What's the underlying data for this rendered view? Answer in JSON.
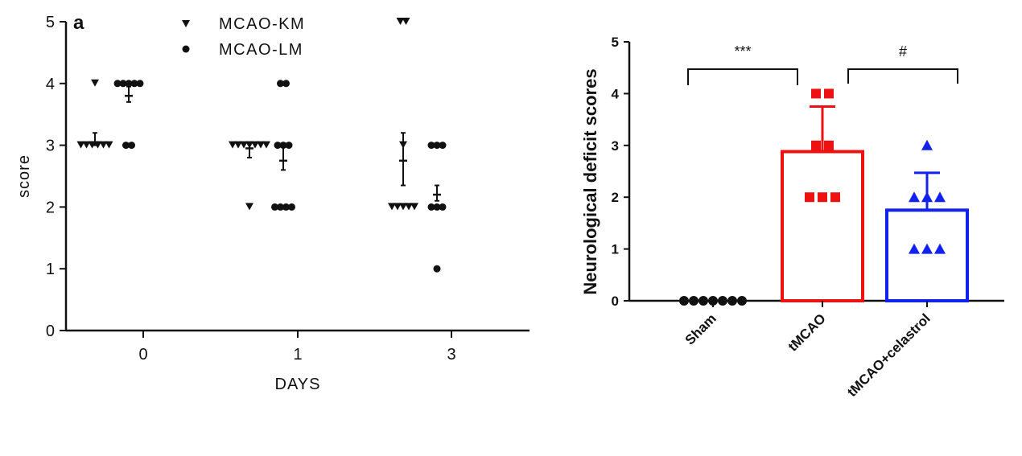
{
  "chart_data": [
    {
      "type": "scatter",
      "panel_label": "a",
      "xlabel": "DAYS",
      "ylabel": "score",
      "categories": [
        "0",
        "1",
        "3"
      ],
      "ylim": [
        0,
        5
      ],
      "yticks": [
        "0",
        "1",
        "2",
        "3",
        "4",
        "5"
      ],
      "legend_position": "top-center",
      "series": [
        {
          "name": "MCAO-KM",
          "marker": "triangle-down",
          "color": "#111111",
          "groups": [
            {
              "category": "0",
              "points": [
                4,
                3,
                3,
                3,
                3,
                3,
                3
              ],
              "mean": 3.05,
              "err": [
                3.0,
                3.2
              ]
            },
            {
              "category": "1",
              "points": [
                3,
                3,
                3,
                3,
                3,
                3,
                3,
                2
              ],
              "mean": 2.95,
              "err": [
                2.8,
                3.05
              ]
            },
            {
              "category": "3",
              "points": [
                5,
                5,
                3,
                2,
                2,
                2,
                2,
                2
              ],
              "mean": 2.75,
              "err": [
                2.35,
                3.2
              ]
            }
          ]
        },
        {
          "name": "MCAO-LM",
          "marker": "circle",
          "color": "#111111",
          "groups": [
            {
              "category": "0",
              "points": [
                4,
                4,
                4,
                4,
                4,
                3,
                3
              ],
              "mean": 3.8,
              "err": [
                3.7,
                3.95
              ]
            },
            {
              "category": "1",
              "points": [
                4,
                4,
                3,
                3,
                3,
                2,
                2,
                2,
                2
              ],
              "mean": 2.75,
              "err": [
                2.6,
                3.0
              ]
            },
            {
              "category": "3",
              "points": [
                3,
                3,
                3,
                2,
                2,
                2,
                1
              ],
              "mean": 2.2,
              "err": [
                2.1,
                2.35
              ]
            }
          ]
        }
      ]
    },
    {
      "type": "bar",
      "xlabel": "",
      "ylabel": "Neurological deficit scores",
      "categories": [
        "Sham",
        "tMCAO",
        "tMCAO+celastrol"
      ],
      "ylim": [
        0,
        5
      ],
      "yticks": [
        "0",
        "1",
        "2",
        "3",
        "4",
        "5"
      ],
      "series": [
        {
          "values": [
            0,
            2.88,
            1.75
          ],
          "errors": [
            0,
            0.87,
            0.72
          ],
          "colors": [
            "#111111",
            "#ee1111",
            "#1122ee"
          ],
          "markers": [
            "circle",
            "square",
            "triangle"
          ],
          "points": [
            [
              0,
              0,
              0,
              0,
              0,
              0,
              0
            ],
            [
              4,
              4,
              3,
              3,
              2,
              2,
              2
            ],
            [
              3,
              2,
              2,
              2,
              1,
              1,
              1
            ]
          ]
        }
      ],
      "annotations": [
        {
          "from": "Sham",
          "to": "tMCAO",
          "label": "***"
        },
        {
          "from": "tMCAO",
          "to": "tMCAO+celastrol",
          "label": "#"
        }
      ]
    }
  ]
}
